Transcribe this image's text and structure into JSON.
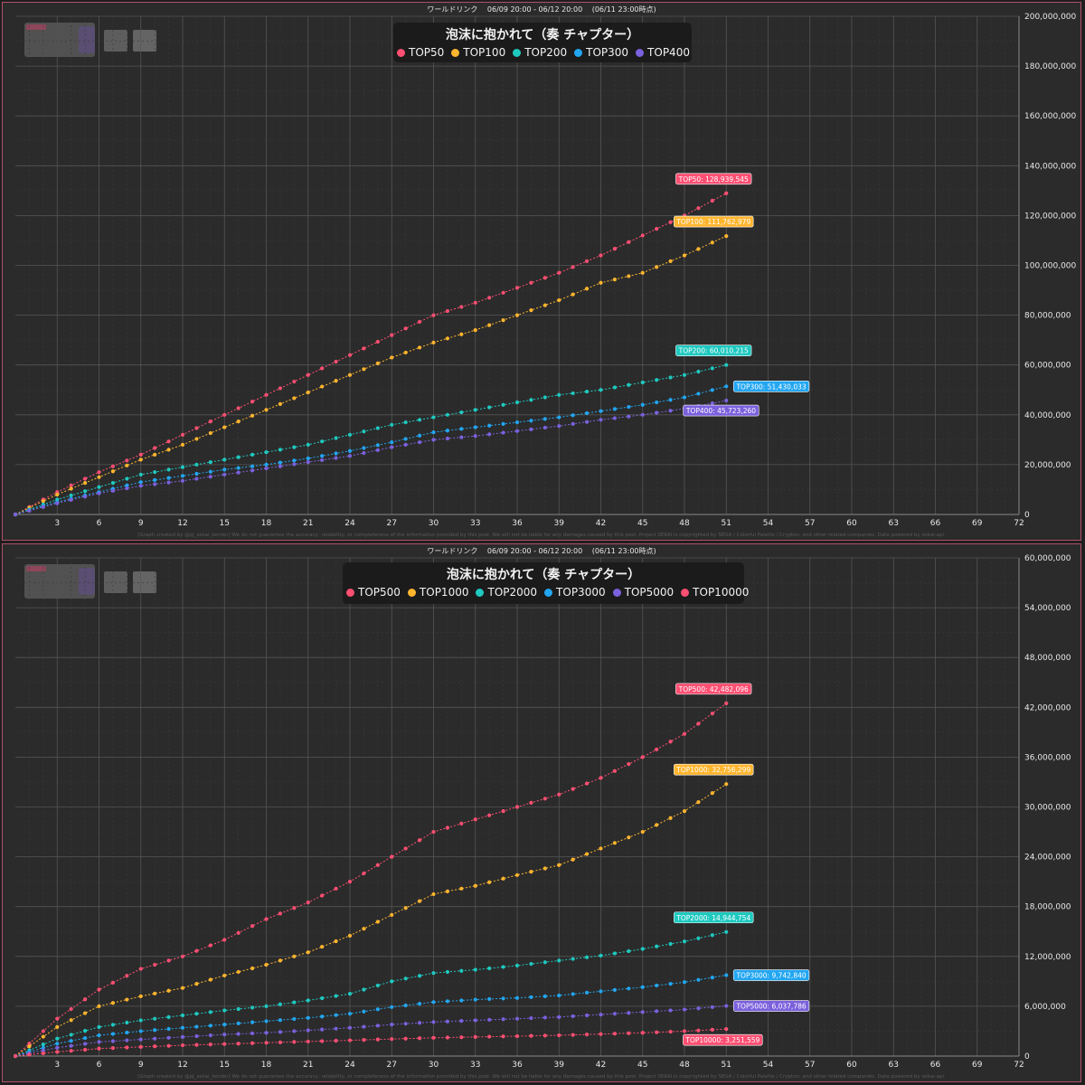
{
  "colors": {
    "background": "#2b2b2b",
    "border": "#b0506a",
    "grid": "#4a4a4a",
    "text": "#e8e8e8"
  },
  "icons": [
    "event-logo-icon",
    "character-icon"
  ],
  "chart_data": [
    {
      "type": "line",
      "subtitle": "ワールドリンク　 06/09 20:00 - 06/12 20:00　 (06/11 23:00時点)",
      "title": "泡沫に抱かれて（奏 チャプター）",
      "credit": "[Graph created by @pj_sekai_border]  We do not guarantee the accuracy, reliability, or completeness of the information provided by this post. We will not be liable for any damages caused by this post. Project SEKAI is copyrighted by SEGA / Colorful Palette / Crypton, and other related companies. Data powered by sekai-api.",
      "xlim": [
        0,
        72
      ],
      "xticks": [
        3,
        6,
        9,
        12,
        15,
        18,
        21,
        24,
        27,
        30,
        33,
        36,
        39,
        42,
        45,
        48,
        51,
        54,
        57,
        60,
        63,
        66,
        69,
        72
      ],
      "ylim": [
        0,
        200000000
      ],
      "yticks": [
        0,
        20000000,
        40000000,
        60000000,
        80000000,
        100000000,
        120000000,
        140000000,
        160000000,
        180000000,
        200000000
      ],
      "ytick_labels": [
        "0",
        "20,000,000",
        "40,000,000",
        "60,000,000",
        "80,000,000",
        "100,000,000",
        "120,000,000",
        "140,000,000",
        "160,000,000",
        "180,000,000",
        "200,000,000"
      ],
      "grid": true,
      "legend_position": "top-center",
      "series": [
        {
          "name": "TOP50",
          "color": "#ff4f72",
          "final_label": "TOP50: 128,939,545",
          "x": [
            0,
            3,
            6,
            9,
            12,
            15,
            18,
            21,
            24,
            27,
            30,
            33,
            36,
            39,
            42,
            45,
            48,
            51
          ],
          "values": [
            0,
            9000000,
            17000000,
            24000000,
            32000000,
            40000000,
            48000000,
            56000000,
            64000000,
            72000000,
            80000000,
            85000000,
            91000000,
            97000000,
            104000000,
            112000000,
            120000000,
            128939545
          ]
        },
        {
          "name": "TOP100",
          "color": "#ffb52e",
          "final_label": "TOP100: 111,762,979",
          "x": [
            0,
            3,
            6,
            9,
            12,
            15,
            18,
            21,
            24,
            27,
            30,
            33,
            36,
            39,
            42,
            45,
            48,
            51
          ],
          "values": [
            0,
            8000000,
            15000000,
            22000000,
            28000000,
            35000000,
            42000000,
            49000000,
            56000000,
            63000000,
            69000000,
            74000000,
            80000000,
            86000000,
            93000000,
            97000000,
            104000000,
            111762979
          ]
        },
        {
          "name": "TOP200",
          "color": "#1fc9c0",
          "final_label": "TOP200: 60,010,215",
          "x": [
            0,
            3,
            6,
            9,
            12,
            15,
            18,
            21,
            24,
            27,
            30,
            33,
            36,
            39,
            42,
            45,
            48,
            51
          ],
          "values": [
            0,
            6000000,
            11000000,
            16000000,
            19000000,
            22000000,
            25000000,
            28000000,
            32000000,
            36000000,
            39000000,
            42000000,
            45000000,
            48000000,
            50000000,
            53000000,
            56000000,
            60010215
          ]
        },
        {
          "name": "TOP300",
          "color": "#22a6f2",
          "final_label": "TOP300: 51,430,033",
          "x": [
            0,
            3,
            6,
            9,
            12,
            15,
            18,
            21,
            24,
            27,
            30,
            33,
            36,
            39,
            42,
            45,
            48,
            51
          ],
          "values": [
            0,
            5000000,
            9000000,
            13000000,
            15500000,
            18000000,
            20000000,
            22500000,
            25500000,
            29000000,
            33000000,
            35000000,
            37000000,
            39000000,
            41500000,
            44000000,
            47000000,
            51430033
          ]
        },
        {
          "name": "TOP400",
          "color": "#7b61dd",
          "final_label": "TOP400: 45,723,260",
          "x": [
            0,
            3,
            6,
            9,
            12,
            15,
            18,
            21,
            24,
            27,
            30,
            33,
            36,
            39,
            42,
            45,
            48,
            51
          ],
          "values": [
            0,
            4500000,
            8500000,
            11500000,
            13500000,
            16000000,
            18500000,
            21000000,
            23500000,
            27000000,
            30000000,
            31500000,
            33500000,
            35500000,
            38000000,
            40000000,
            42500000,
            45723260
          ]
        }
      ]
    },
    {
      "type": "line",
      "subtitle": "ワールドリンク　 06/09 20:00 - 06/12 20:00　 (06/11 23:00時点)",
      "title": "泡沫に抱かれて（奏 チャプター）",
      "credit": "[Graph created by @pj_sekai_border]  We do not guarantee the accuracy, reliability, or completeness of the information provided by this post. We will not be liable for any damages caused by this post. Project SEKAI is copyrighted by SEGA / Colorful Palette / Crypton, and other related companies. Data powered by sekai-api.",
      "xlim": [
        0,
        72
      ],
      "xticks": [
        3,
        6,
        9,
        12,
        15,
        18,
        21,
        24,
        27,
        30,
        33,
        36,
        39,
        42,
        45,
        48,
        51,
        54,
        57,
        60,
        63,
        66,
        69,
        72
      ],
      "ylim": [
        0,
        60000000
      ],
      "yticks": [
        0,
        6000000,
        12000000,
        18000000,
        24000000,
        30000000,
        36000000,
        42000000,
        48000000,
        54000000,
        60000000
      ],
      "ytick_labels": [
        "0",
        "6,000,000",
        "12,000,000",
        "18,000,000",
        "24,000,000",
        "30,000,000",
        "36,000,000",
        "42,000,000",
        "48,000,000",
        "54,000,000",
        "60,000,000"
      ],
      "grid": true,
      "legend_position": "top-center",
      "series": [
        {
          "name": "TOP500",
          "color": "#ff4f72",
          "final_label": "TOP500: 42,482,096",
          "x": [
            0,
            3,
            6,
            9,
            12,
            15,
            18,
            21,
            24,
            27,
            30,
            33,
            36,
            39,
            42,
            45,
            48,
            51
          ],
          "values": [
            0,
            4500000,
            8000000,
            10500000,
            12000000,
            14000000,
            16500000,
            18500000,
            21000000,
            24000000,
            27000000,
            28500000,
            30000000,
            31500000,
            33500000,
            36000000,
            38800000,
            42482096
          ]
        },
        {
          "name": "TOP1000",
          "color": "#ffb52e",
          "final_label": "TOP1000: 32,756,299",
          "x": [
            0,
            3,
            6,
            9,
            12,
            15,
            18,
            21,
            24,
            27,
            30,
            33,
            36,
            39,
            42,
            45,
            48,
            51
          ],
          "values": [
            0,
            3500000,
            6000000,
            7200000,
            8200000,
            9700000,
            11000000,
            12500000,
            14500000,
            17000000,
            19500000,
            20500000,
            21800000,
            23000000,
            25000000,
            27000000,
            29500000,
            32756299
          ]
        },
        {
          "name": "TOP2000",
          "color": "#1fc9c0",
          "final_label": "TOP2000: 14,944,754",
          "x": [
            0,
            3,
            6,
            9,
            12,
            15,
            18,
            21,
            24,
            27,
            30,
            33,
            36,
            39,
            42,
            45,
            48,
            51
          ],
          "values": [
            0,
            2100000,
            3500000,
            4300000,
            4900000,
            5500000,
            6000000,
            6700000,
            7500000,
            9000000,
            10000000,
            10400000,
            10900000,
            11500000,
            12100000,
            12900000,
            13800000,
            14944754
          ]
        },
        {
          "name": "TOP3000",
          "color": "#22a6f2",
          "final_label": "TOP3000: 9,742,840",
          "x": [
            0,
            3,
            6,
            9,
            12,
            15,
            18,
            21,
            24,
            27,
            30,
            33,
            36,
            39,
            42,
            45,
            48,
            51
          ],
          "values": [
            0,
            1500000,
            2500000,
            3000000,
            3400000,
            3800000,
            4200000,
            4600000,
            5100000,
            5900000,
            6500000,
            6800000,
            7000000,
            7300000,
            7800000,
            8300000,
            8900000,
            9742840
          ]
        },
        {
          "name": "TOP5000",
          "color": "#7b61dd",
          "final_label": "TOP5000: 6,037,786",
          "x": [
            0,
            3,
            6,
            9,
            12,
            15,
            18,
            21,
            24,
            27,
            30,
            33,
            36,
            39,
            42,
            45,
            48,
            51
          ],
          "values": [
            0,
            1000000,
            1700000,
            2000000,
            2300000,
            2600000,
            2800000,
            3100000,
            3400000,
            3800000,
            4100000,
            4300000,
            4500000,
            4700000,
            5000000,
            5300000,
            5600000,
            6037786
          ]
        },
        {
          "name": "TOP10000",
          "color": "#ff4f72",
          "final_label": "TOP10000: 3,251,559",
          "x": [
            0,
            3,
            6,
            9,
            12,
            15,
            18,
            21,
            24,
            27,
            30,
            33,
            36,
            39,
            42,
            45,
            48,
            51
          ],
          "values": [
            0,
            500000,
            900000,
            1100000,
            1300000,
            1450000,
            1600000,
            1750000,
            1900000,
            2050000,
            2200000,
            2300000,
            2400000,
            2500000,
            2650000,
            2800000,
            3000000,
            3251559
          ]
        }
      ]
    }
  ]
}
